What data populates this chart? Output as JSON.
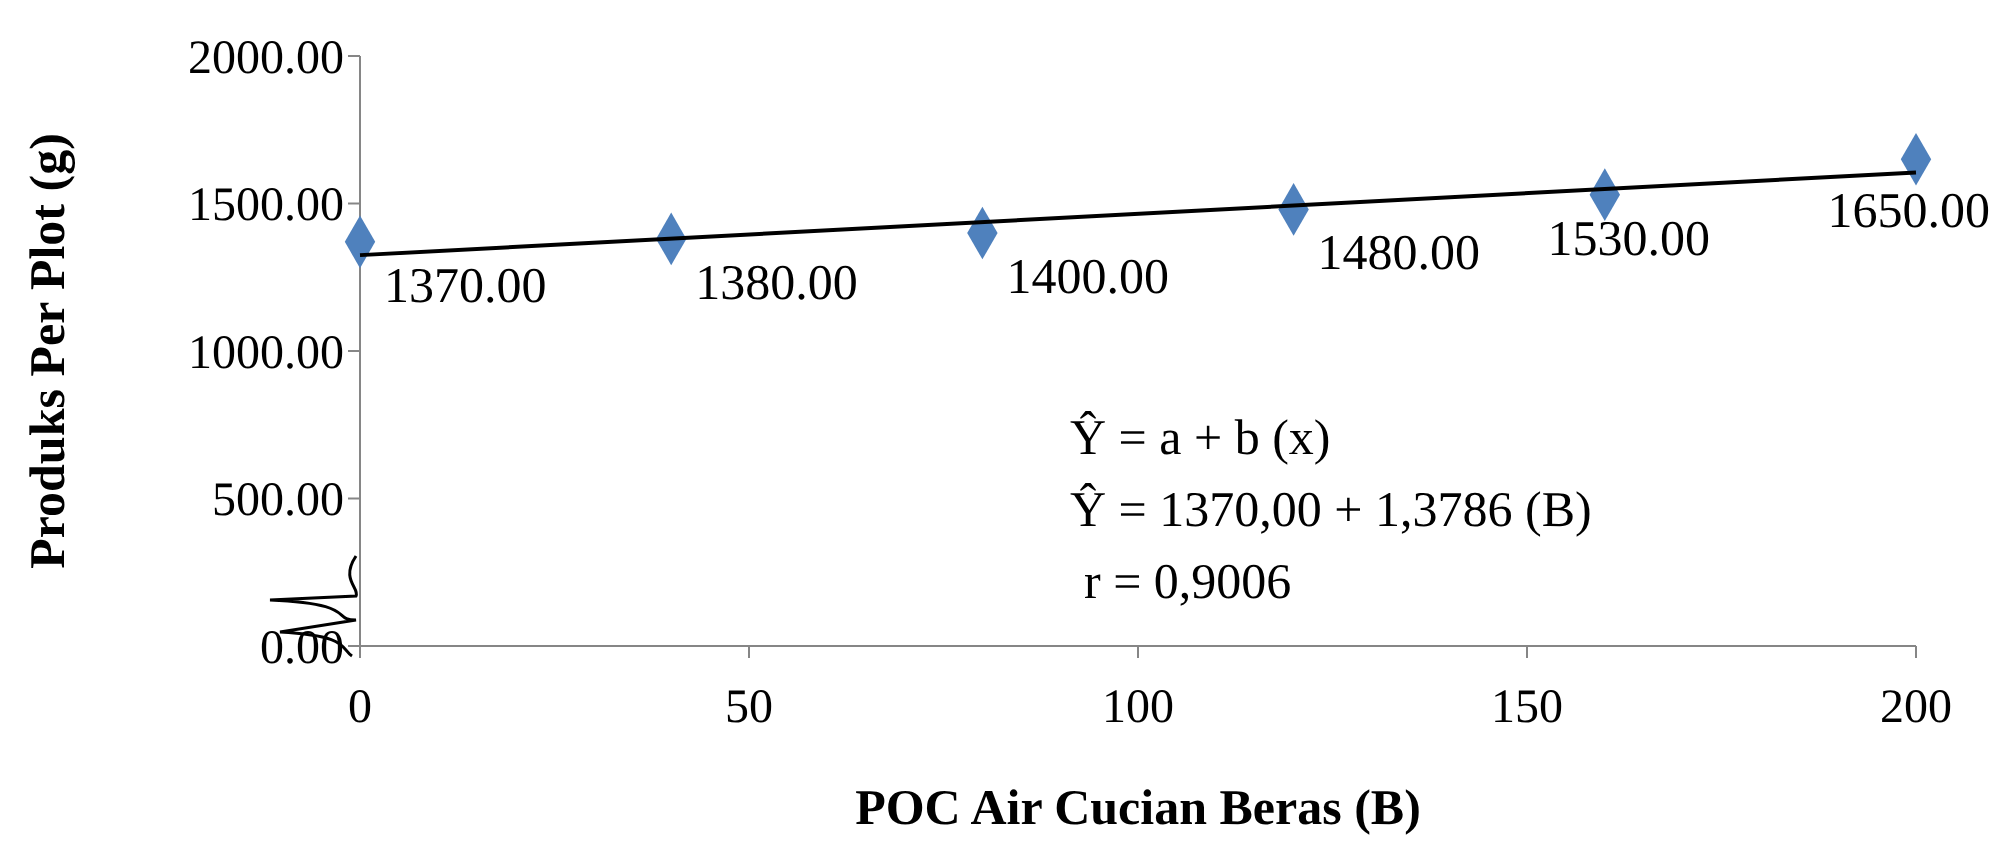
{
  "chart_data": {
    "type": "scatter",
    "xlabel": "POC Air Cucian Beras (B)",
    "ylabel": "Produks Per Plot (g)",
    "xlim": [
      0,
      200
    ],
    "xticks": [
      0,
      50,
      100,
      150,
      200
    ],
    "ylim": [
      0,
      2000
    ],
    "yticks": [
      {
        "value": 0,
        "label": "0.00"
      },
      {
        "value": 500,
        "label": "500.00"
      },
      {
        "value": 1000,
        "label": "1000.00"
      },
      {
        "value": 1500,
        "label": "1500.00"
      },
      {
        "value": 2000,
        "label": "2000.00"
      }
    ],
    "marker": "diamond",
    "grid": false,
    "series": [
      {
        "color": "#4f81bd",
        "x": [
          0,
          40,
          80,
          120,
          160,
          200
        ],
        "values": [
          1370,
          1380,
          1400,
          1480,
          1530,
          1650
        ],
        "value_labels": [
          "1370.00",
          "1380.00",
          "1400.00",
          "1480.00",
          "1530.00",
          "1650.00"
        ]
      },
      {
        "type": "line",
        "color": "#000000",
        "marker": "none",
        "line_style": "solid",
        "x": [
          0,
          200
        ],
        "values": [
          1325,
          1605
        ]
      }
    ],
    "annotations": [
      "Ŷ = a + b (x)",
      "Ŷ = 1370,00 + 1,3786 (B)",
      "r = 0,9006"
    ]
  }
}
